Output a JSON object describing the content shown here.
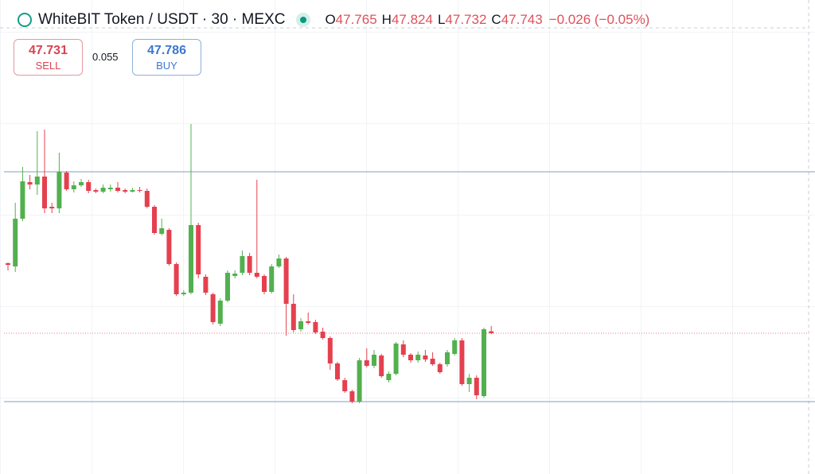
{
  "header": {
    "title": "WhiteBIT Token / USDT · 30 · MEXC",
    "ohlc": [
      {
        "label": "O",
        "value": 47.765
      },
      {
        "label": "H",
        "value": 47.824
      },
      {
        "label": "L",
        "value": 47.732
      },
      {
        "label": "C",
        "value": 47.743
      }
    ],
    "change": "−0.026 (−0.05%)"
  },
  "trade": {
    "sell": {
      "price": 47.731,
      "label": "SELL"
    },
    "spread": 0.055,
    "buy": {
      "price": 47.786,
      "label": "BUY"
    }
  },
  "chart_data": {
    "type": "candlestick",
    "up_color": "#53b04f",
    "down_color": "#e5404f",
    "ylim": [
      46.15,
      50.614
    ],
    "hlines": [
      {
        "value": 49.57,
        "color": "#7f9fc2"
      },
      {
        "value": 46.969,
        "color": "#7f9fc2"
      }
    ],
    "price_line_color": "#e5404f",
    "open": [
      48.535,
      48.499,
      49.039,
      49.453,
      49.426,
      49.516,
      49.174,
      49.156,
      49.561,
      49.372,
      49.417,
      49.453,
      49.363,
      49.345,
      49.372,
      49.39,
      49.363,
      49.345,
      49.363,
      49.354,
      49.174,
      48.868,
      48.913,
      48.526,
      48.184,
      48.202,
      48.967,
      48.382,
      48.184,
      47.851,
      48.112,
      48.391,
      48.427,
      48.616,
      48.427,
      48.391,
      48.211,
      48.499,
      48.589,
      48.076,
      47.788,
      47.878,
      47.869,
      47.761,
      47.689,
      47.401,
      47.212,
      47.086,
      46.969,
      47.437,
      47.374,
      47.491,
      47.212,
      47.284,
      47.617,
      47.5,
      47.437,
      47.491,
      47.455,
      47.392,
      47.392,
      47.509,
      47.662,
      47.167,
      47.239,
      47.032,
      47.765
    ],
    "high": [
      48.544,
      49.219,
      49.624,
      49.534,
      50.029,
      50.047,
      49.219,
      49.786,
      49.579,
      49.462,
      49.489,
      49.48,
      49.381,
      49.426,
      49.426,
      49.453,
      49.381,
      49.39,
      49.399,
      49.381,
      49.192,
      49.039,
      48.931,
      48.544,
      48.229,
      50.11,
      48.994,
      48.409,
      48.202,
      48.139,
      48.454,
      48.454,
      48.679,
      48.652,
      49.48,
      48.409,
      48.526,
      48.634,
      48.607,
      48.184,
      47.914,
      47.977,
      47.896,
      47.806,
      47.707,
      47.419,
      47.239,
      47.104,
      47.464,
      47.572,
      47.554,
      47.509,
      47.311,
      47.644,
      47.662,
      47.518,
      47.536,
      47.554,
      47.527,
      47.41,
      47.554,
      47.689,
      47.689,
      47.284,
      47.266,
      47.806,
      47.824
    ],
    "low": [
      48.454,
      48.436,
      49.012,
      49.372,
      49.309,
      49.102,
      49.102,
      49.102,
      49.354,
      49.336,
      49.399,
      49.327,
      49.327,
      49.327,
      49.345,
      49.336,
      49.327,
      49.336,
      49.336,
      49.156,
      48.859,
      48.85,
      48.508,
      48.166,
      48.166,
      48.184,
      48.364,
      48.175,
      47.842,
      47.824,
      48.094,
      48.364,
      48.4,
      48.4,
      48.364,
      48.184,
      48.193,
      48.481,
      47.716,
      47.752,
      47.761,
      47.842,
      47.734,
      47.671,
      47.329,
      47.203,
      47.068,
      46.951,
      46.951,
      47.356,
      47.347,
      47.239,
      47.185,
      47.266,
      47.473,
      47.41,
      47.41,
      47.419,
      47.374,
      47.284,
      47.365,
      47.491,
      47.149,
      47.077,
      46.996,
      47.014,
      47.732
    ],
    "close": [
      48.517,
      49.039,
      49.462,
      49.426,
      49.516,
      49.156,
      49.156,
      49.57,
      49.372,
      49.417,
      49.453,
      49.354,
      49.345,
      49.39,
      49.39,
      49.354,
      49.345,
      49.363,
      49.354,
      49.174,
      48.877,
      48.931,
      48.526,
      48.184,
      48.202,
      48.967,
      48.409,
      48.202,
      47.869,
      48.112,
      48.427,
      48.418,
      48.616,
      48.427,
      48.382,
      48.211,
      48.499,
      48.589,
      48.076,
      47.779,
      47.878,
      47.86,
      47.752,
      47.689,
      47.401,
      47.221,
      47.086,
      46.969,
      47.437,
      47.374,
      47.5,
      47.257,
      47.284,
      47.626,
      47.5,
      47.437,
      47.5,
      47.446,
      47.392,
      47.302,
      47.527,
      47.662,
      47.167,
      47.239,
      47.041,
      47.788,
      47.743
    ]
  }
}
